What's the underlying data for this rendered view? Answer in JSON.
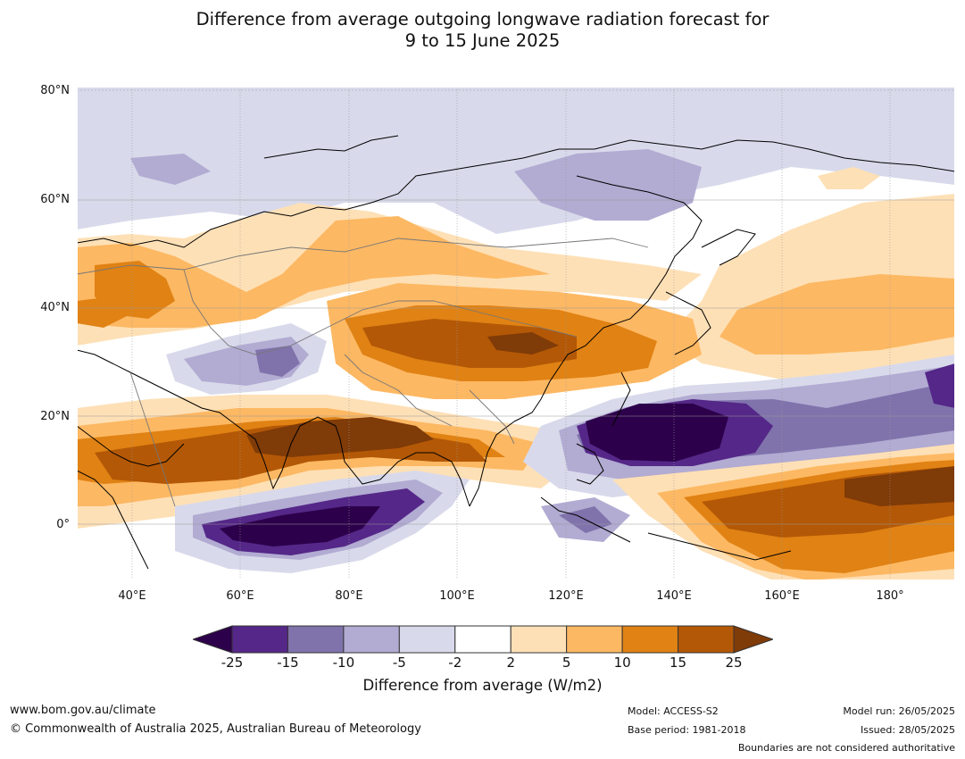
{
  "title": {
    "line1": "Difference from average outgoing longwave radiation forecast for",
    "line2": "9 to 15 June 2025"
  },
  "map": {
    "lat_labels": [
      "80°N",
      "60°N",
      "40°N",
      "20°N",
      "0°"
    ],
    "lon_labels": [
      "40°E",
      "60°E",
      "80°E",
      "100°E",
      "120°E",
      "140°E",
      "160°E",
      "180°"
    ]
  },
  "legend": {
    "colors": [
      "#2d004b",
      "#542788",
      "#8073ac",
      "#b2abd2",
      "#d8daeb",
      "#ffffff",
      "#fee0b6",
      "#fdb863",
      "#e08214",
      "#b35806",
      "#7f3b08"
    ],
    "ticks": [
      "-25",
      "-15",
      "-10",
      "-5",
      "-2",
      "2",
      "5",
      "10",
      "15",
      "25"
    ],
    "label": "Difference from average (W/m2)"
  },
  "footer": {
    "website": "www.bom.gov.au/climate",
    "copyright": "© Commonwealth of Australia 2025, Australian Bureau of Meteorology",
    "model": "Model: ACCESS-S2",
    "base_period": "Base period: 1981-2018",
    "model_run": "Model run: 26/05/2025",
    "issued": "Issued: 28/05/2025",
    "disclaimer": "Boundaries are not considered authoritative"
  }
}
